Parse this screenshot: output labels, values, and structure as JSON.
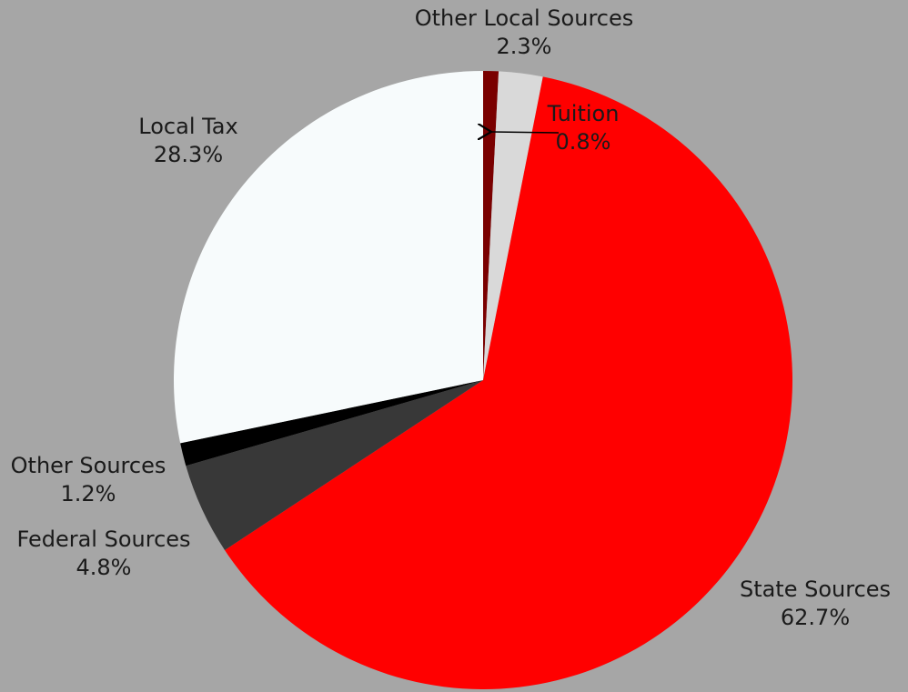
{
  "chart_data": {
    "type": "pie",
    "title": "",
    "slices": [
      {
        "label": "Tuition",
        "value": 0.8,
        "value_label": "0.8%",
        "color": "#7a0000"
      },
      {
        "label": "Other Local Sources",
        "value": 2.3,
        "value_label": "2.3%",
        "color": "#d9d9d9"
      },
      {
        "label": "State Sources",
        "value": 62.7,
        "value_label": "62.7%",
        "color": "#ff0000"
      },
      {
        "label": "Federal Sources",
        "value": 4.8,
        "value_label": "4.8%",
        "color": "#383838"
      },
      {
        "label": "Other Sources",
        "value": 1.2,
        "value_label": "1.2%",
        "color": "#000000"
      },
      {
        "label": "Local Tax",
        "value": 28.3,
        "value_label": "28.3%",
        "color": "#f7fbfc"
      }
    ],
    "start_angle": "12 o'clock",
    "direction": "clockwise",
    "label_leader": "Tuition"
  }
}
